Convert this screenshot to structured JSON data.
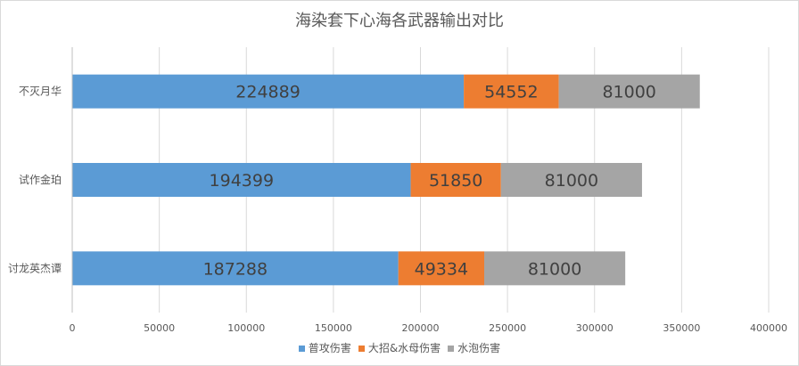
{
  "chart_data": {
    "type": "bar",
    "orientation": "horizontal",
    "stacked": true,
    "title": "海染套下心海各武器输出对比",
    "categories": [
      "不灭月华",
      "试作金珀",
      "讨龙英杰谭"
    ],
    "series": [
      {
        "name": "普攻伤害",
        "color": "#5b9bd5",
        "values": [
          224889,
          194399,
          187288
        ]
      },
      {
        "name": "大招&水母伤害",
        "color": "#ed7d31",
        "values": [
          54552,
          51850,
          49334
        ]
      },
      {
        "name": "水泡伤害",
        "color": "#a5a5a5",
        "values": [
          81000,
          81000,
          81000
        ]
      }
    ],
    "xlim": [
      0,
      400000
    ],
    "xticks": [
      0,
      50000,
      100000,
      150000,
      200000,
      250000,
      300000,
      350000,
      400000
    ],
    "xlabel": "",
    "ylabel": "",
    "grid": true,
    "legend_position": "bottom",
    "data_labels": true
  }
}
